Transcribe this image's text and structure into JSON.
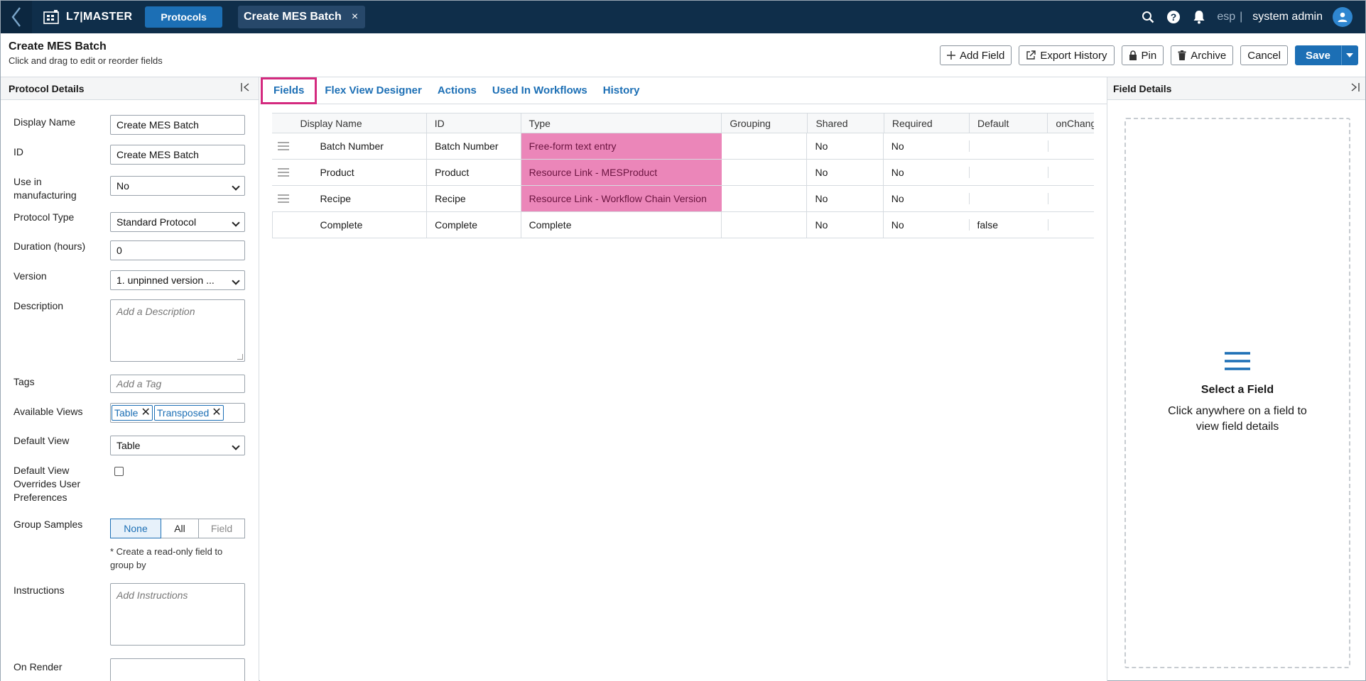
{
  "topbar": {
    "app_name": "L7|MASTER",
    "nav_pill": "Protocols",
    "doc_tab": "Create MES Batch",
    "doc_tab_close": "×",
    "site": "esp",
    "separator": "|",
    "user": "system admin",
    "icons": [
      "back-chevron-icon",
      "app-logo-icon",
      "search-icon",
      "help-icon",
      "bell-icon",
      "user-avatar-icon"
    ]
  },
  "header": {
    "title": "Create MES Batch",
    "subtitle": "Click and drag to edit or reorder fields",
    "buttons": {
      "add_field": "Add Field",
      "export_history": "Export History",
      "pin": "Pin",
      "archive": "Archive",
      "cancel": "Cancel",
      "save": "Save"
    }
  },
  "left_panel": {
    "title": "Protocol Details",
    "fields": {
      "display_name": {
        "label": "Display Name",
        "value": "Create MES Batch"
      },
      "id": {
        "label": "ID",
        "value": "Create MES Batch"
      },
      "use_in_manufacturing": {
        "label": "Use in manufacturing",
        "value": "No"
      },
      "protocol_type": {
        "label": "Protocol Type",
        "value": "Standard Protocol"
      },
      "duration": {
        "label": "Duration (hours)",
        "value": "0"
      },
      "version": {
        "label": "Version",
        "value": "1. unpinned version ..."
      },
      "description": {
        "label": "Description",
        "placeholder": "Add a Description"
      },
      "tags": {
        "label": "Tags",
        "placeholder": "Add a Tag"
      },
      "available_views": {
        "label": "Available Views",
        "chips": [
          "Table",
          "Transposed"
        ]
      },
      "default_view": {
        "label": "Default View",
        "value": "Table"
      },
      "default_view_overrides": {
        "label": "Default View Overrides User Preferences",
        "checked": false
      },
      "group_samples": {
        "label": "Group Samples",
        "options": [
          "None",
          "All",
          "Field"
        ],
        "selected": "None",
        "note": "* Create a read-only field to group by"
      },
      "instructions": {
        "label": "Instructions",
        "placeholder": "Add Instructions"
      },
      "on_render": {
        "label": "On Render"
      }
    }
  },
  "center": {
    "tabs": [
      "Fields",
      "Flex View Designer",
      "Actions",
      "Used In Workflows",
      "History"
    ],
    "active_tab": "Fields",
    "table": {
      "columns": [
        "Display Name",
        "ID",
        "Type",
        "Grouping",
        "Shared",
        "Required",
        "Default",
        "onChang"
      ],
      "rows": [
        {
          "display_name": "Batch Number",
          "id": "Batch Number",
          "type": "Free-form text entry",
          "grouping": "",
          "shared": "No",
          "required": "No",
          "default": ""
        },
        {
          "display_name": "Product",
          "id": "Product",
          "type": "Resource Link - MESProduct",
          "grouping": "",
          "shared": "No",
          "required": "No",
          "default": ""
        },
        {
          "display_name": "Recipe",
          "id": "Recipe",
          "type": "Resource Link - Workflow Chain Version",
          "grouping": "",
          "shared": "No",
          "required": "No",
          "default": ""
        },
        {
          "display_name": "Complete",
          "id": "Complete",
          "type": "Complete",
          "grouping": "",
          "shared": "No",
          "required": "No",
          "default": "false"
        }
      ]
    }
  },
  "right_panel": {
    "title": "Field Details",
    "empty_title": "Select a Field",
    "empty_text": "Click anywhere on a field to view field details"
  },
  "colors": {
    "topbar": "#0f2e4a",
    "primary": "#1c6fb5",
    "highlight_tab": "#d42a7f",
    "highlight_cell": "#eb86b9"
  }
}
